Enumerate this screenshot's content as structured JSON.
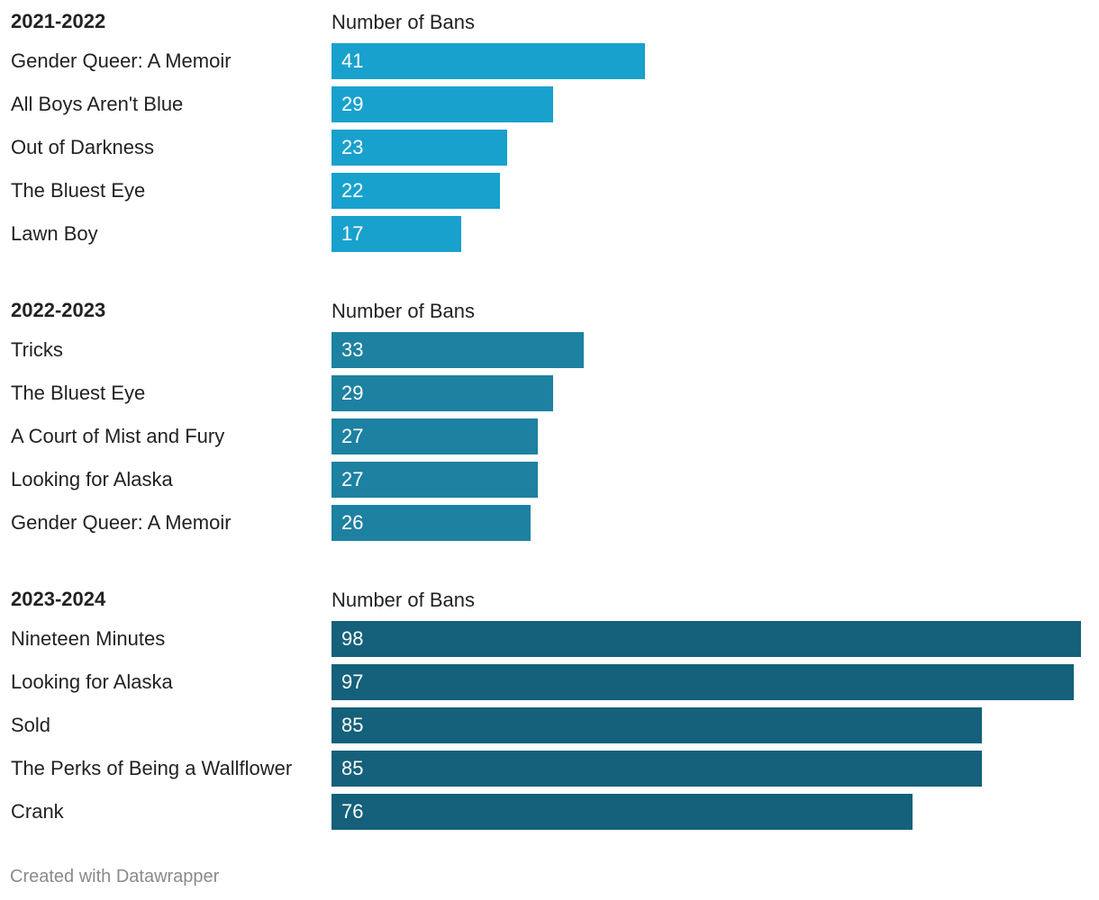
{
  "chart_data": [
    {
      "type": "bar",
      "orientation": "horizontal",
      "title": "2021-2022",
      "value_header": "Number of Bans",
      "color": "#18a1cd",
      "categories": [
        "Gender Queer: A Memoir",
        "All Boys Aren't Blue",
        "Out of Darkness",
        "The Bluest Eye",
        "Lawn Boy"
      ],
      "values": [
        41,
        29,
        23,
        22,
        17
      ],
      "xlim": [
        0,
        98
      ]
    },
    {
      "type": "bar",
      "orientation": "horizontal",
      "title": "2022-2023",
      "value_header": "Number of Bans",
      "color": "#1d81a2",
      "categories": [
        "Tricks",
        "The Bluest Eye",
        "A Court of Mist and Fury",
        "Looking for Alaska",
        "Gender Queer: A Memoir"
      ],
      "values": [
        33,
        29,
        27,
        27,
        26
      ],
      "xlim": [
        0,
        98
      ]
    },
    {
      "type": "bar",
      "orientation": "horizontal",
      "title": "2023-2024",
      "value_header": "Number of Bans",
      "color": "#15607a",
      "categories": [
        "Nineteen Minutes",
        "Looking for Alaska",
        "Sold",
        "The Perks of Being a Wallflower",
        "Crank"
      ],
      "values": [
        98,
        97,
        85,
        85,
        76
      ],
      "xlim": [
        0,
        98
      ]
    }
  ],
  "footer": {
    "credit": "Created with Datawrapper"
  }
}
